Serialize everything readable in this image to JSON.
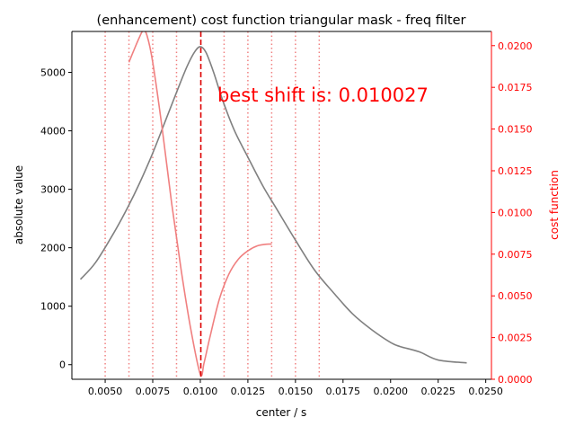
{
  "chart_data": {
    "type": "line",
    "title": "(enhancement) cost function triangular mask - freq filter",
    "xlabel": "center / s",
    "ylabel_left": "absolute value",
    "ylabel_right": "cost function",
    "annotation": "best shift is: 0.010027",
    "best_shift": 0.010027,
    "xlim": [
      0.00325,
      0.0253
    ],
    "ylim_left": [
      -250,
      5700
    ],
    "ylim_right": [
      0,
      0.02085
    ],
    "xticks": [
      "0.0050",
      "0.0075",
      "0.0100",
      "0.0125",
      "0.0150",
      "0.0175",
      "0.0200",
      "0.0225",
      "0.0250"
    ],
    "xtick_values": [
      0.005,
      0.0075,
      0.01,
      0.0125,
      0.015,
      0.0175,
      0.02,
      0.0225,
      0.025
    ],
    "yticks_left": [
      "0",
      "1000",
      "2000",
      "3000",
      "4000",
      "5000"
    ],
    "ytick_values_left": [
      0,
      1000,
      2000,
      3000,
      4000,
      5000
    ],
    "yticks_right": [
      "0.0000",
      "0.0025",
      "0.0050",
      "0.0075",
      "0.0100",
      "0.0125",
      "0.0150",
      "0.0175",
      "0.0200"
    ],
    "ytick_values_right": [
      0,
      0.0025,
      0.005,
      0.0075,
      0.01,
      0.0125,
      0.015,
      0.0175,
      0.02
    ],
    "mask_lines_x": [
      0.005,
      0.00625,
      0.0075,
      0.00875,
      0.01125,
      0.0125,
      0.01375,
      0.015,
      0.01625
    ],
    "colors": {
      "absolute": "#808080",
      "cost": "#f08080",
      "mask_lines": "#f08080",
      "best_shift": "#dd0000",
      "right_axis": "#ff0000",
      "annotation": "#ff0000"
    },
    "series": [
      {
        "axis": "left",
        "x": [
          0.0037,
          0.0045,
          0.0055,
          0.0062,
          0.0068,
          0.0075,
          0.0082,
          0.0088,
          0.0093,
          0.0097,
          0.01,
          0.0103,
          0.0107,
          0.0112,
          0.0118,
          0.0125,
          0.0133,
          0.014,
          0.015,
          0.016,
          0.017,
          0.018,
          0.019,
          0.02,
          0.0205,
          0.0215,
          0.0225,
          0.024
        ],
        "y": [
          1460,
          1750,
          2280,
          2700,
          3100,
          3620,
          4200,
          4700,
          5100,
          5350,
          5440,
          5340,
          5000,
          4500,
          4000,
          3550,
          3050,
          2670,
          2130,
          1620,
          1230,
          870,
          600,
          380,
          310,
          220,
          80,
          30
        ]
      },
      {
        "axis": "right",
        "x": [
          0.00625,
          0.0065,
          0.0068,
          0.007,
          0.0072,
          0.0075,
          0.008,
          0.0085,
          0.009,
          0.0095,
          0.01,
          0.0102,
          0.0105,
          0.011,
          0.0115,
          0.012,
          0.0125,
          0.013,
          0.0135,
          0.01375
        ],
        "y": [
          0.019,
          0.0197,
          0.0205,
          0.0209,
          0.0206,
          0.019,
          0.015,
          0.0105,
          0.0065,
          0.003,
          0.0003,
          0.001,
          0.0025,
          0.0048,
          0.0063,
          0.0072,
          0.0077,
          0.008,
          0.0081,
          0.0081
        ]
      }
    ]
  }
}
